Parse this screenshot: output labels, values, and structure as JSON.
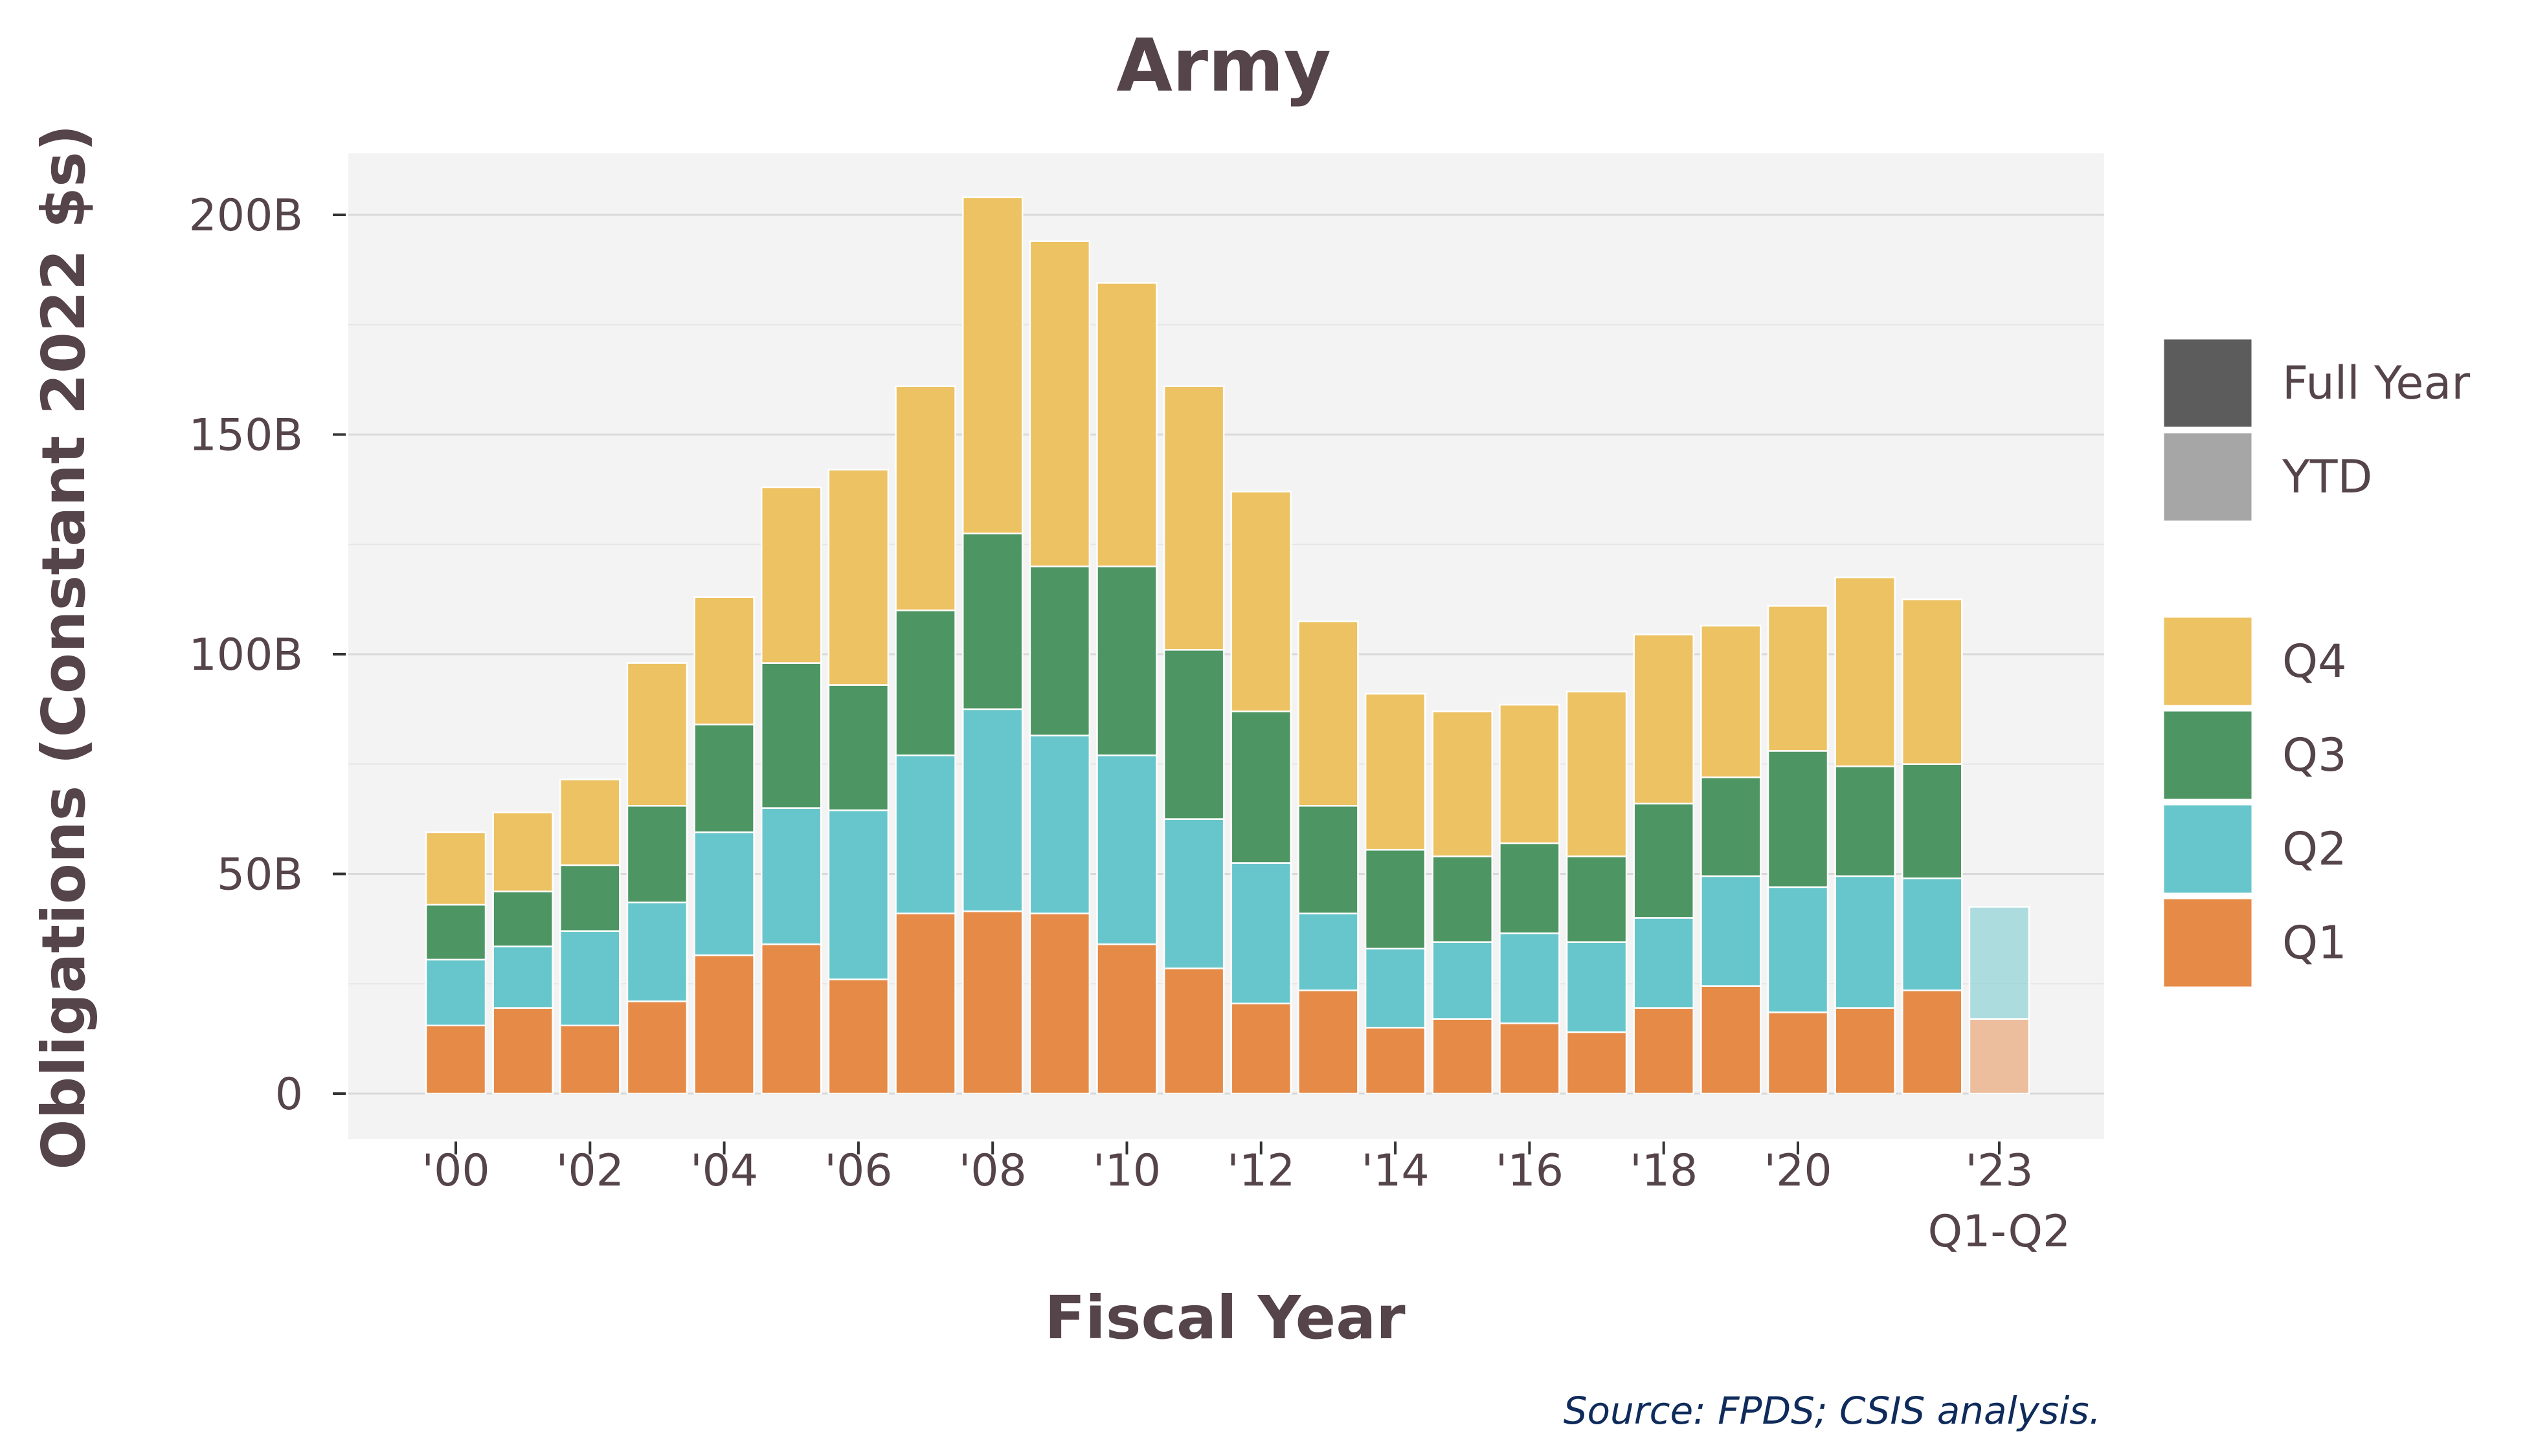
{
  "chart_data": {
    "type": "bar",
    "stacked": true,
    "title": "Army",
    "xlabel": "Fiscal Year",
    "ylabel": "Obligations (Constant 2022 $s)",
    "source": "Source: FPDS; CSIS analysis.",
    "ylim": [
      0,
      210
    ],
    "y_unit": "billions",
    "y_ticks": [
      {
        "value": 0,
        "label": "0"
      },
      {
        "value": 50,
        "label": "50B"
      },
      {
        "value": 100,
        "label": "100B"
      },
      {
        "value": 150,
        "label": "150B"
      },
      {
        "value": 200,
        "label": "200B"
      }
    ],
    "categories": [
      "2000",
      "2001",
      "2002",
      "2003",
      "2004",
      "2005",
      "2006",
      "2007",
      "2008",
      "2009",
      "2010",
      "2011",
      "2012",
      "2013",
      "2014",
      "2015",
      "2016",
      "2017",
      "2018",
      "2019",
      "2020",
      "2021",
      "2022",
      "2023"
    ],
    "x_tick_labels": [
      {
        "category": "2000",
        "label": "'00"
      },
      {
        "category": "2002",
        "label": "'02"
      },
      {
        "category": "2004",
        "label": "'04"
      },
      {
        "category": "2006",
        "label": "'06"
      },
      {
        "category": "2008",
        "label": "'08"
      },
      {
        "category": "2010",
        "label": "'10"
      },
      {
        "category": "2012",
        "label": "'12"
      },
      {
        "category": "2014",
        "label": "'14"
      },
      {
        "category": "2016",
        "label": "'16"
      },
      {
        "category": "2018",
        "label": "'18"
      },
      {
        "category": "2020",
        "label": "'20"
      },
      {
        "category": "2023",
        "label": "'23",
        "sublabel": "Q1-Q2"
      }
    ],
    "ytd_category": "2023",
    "series": [
      {
        "name": "Q1",
        "color": "#e58a47",
        "values": [
          15.5,
          19.5,
          15.5,
          21,
          31.5,
          34,
          26,
          41,
          41.5,
          41,
          34,
          28.5,
          20.5,
          23.5,
          15,
          17,
          16,
          14,
          19.5,
          24.5,
          18.5,
          19.5,
          23.5,
          17
        ]
      },
      {
        "name": "Q2",
        "color": "#67c6cb",
        "values": [
          15,
          14,
          21.5,
          22.5,
          28,
          31,
          38.5,
          36,
          46,
          40.5,
          43,
          34,
          32,
          17.5,
          18,
          17.5,
          20.5,
          20.5,
          20.5,
          25,
          28.5,
          30,
          25.5,
          25.5
        ]
      },
      {
        "name": "Q3",
        "color": "#4d9563",
        "values": [
          12.5,
          12.5,
          15,
          22,
          24.5,
          33,
          28.5,
          33,
          40,
          38.5,
          43,
          38.5,
          34.5,
          24.5,
          22.5,
          19.5,
          20.5,
          19.5,
          26,
          22.5,
          31,
          25,
          26,
          0
        ]
      },
      {
        "name": "Q4",
        "color": "#edc263",
        "values": [
          16.5,
          18,
          19.5,
          32.5,
          29,
          40,
          49,
          51,
          76.5,
          74,
          64.5,
          60,
          50,
          42,
          35.5,
          33,
          31.5,
          37.5,
          38.5,
          34.5,
          33,
          43,
          37.5,
          0
        ]
      }
    ],
    "legend": {
      "placement": "right",
      "period_items": [
        {
          "label": "Full Year",
          "color": "#5c5c5c"
        },
        {
          "label": "YTD",
          "color": "#a6a6a6"
        }
      ],
      "quarter_items": [
        "Q4",
        "Q3",
        "Q2",
        "Q1"
      ]
    },
    "grid": true,
    "panel_color": "#f3f3f3"
  }
}
